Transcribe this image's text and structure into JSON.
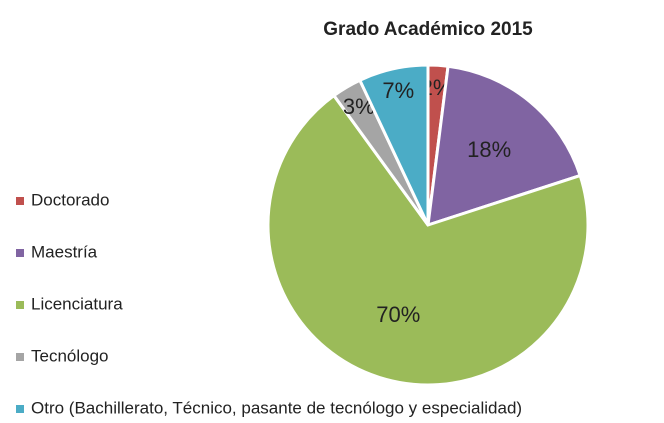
{
  "chart_data": {
    "type": "pie",
    "title": "Grado Académico 2015",
    "categories": [
      "Doctorado",
      "Maestría",
      "Licenciatura",
      "Tecnólogo",
      "Otro (Bachillerato, Técnico, pasante de tecnólogo y especialidad)"
    ],
    "values": [
      2,
      18,
      70,
      3,
      7
    ],
    "value_labels": [
      "2%",
      "18%",
      "70%",
      "3%",
      "7%"
    ],
    "colors": [
      "#c0504d",
      "#8064a2",
      "#9bbb59",
      "#a5a5a5",
      "#4bacc6"
    ],
    "legend": "left"
  }
}
